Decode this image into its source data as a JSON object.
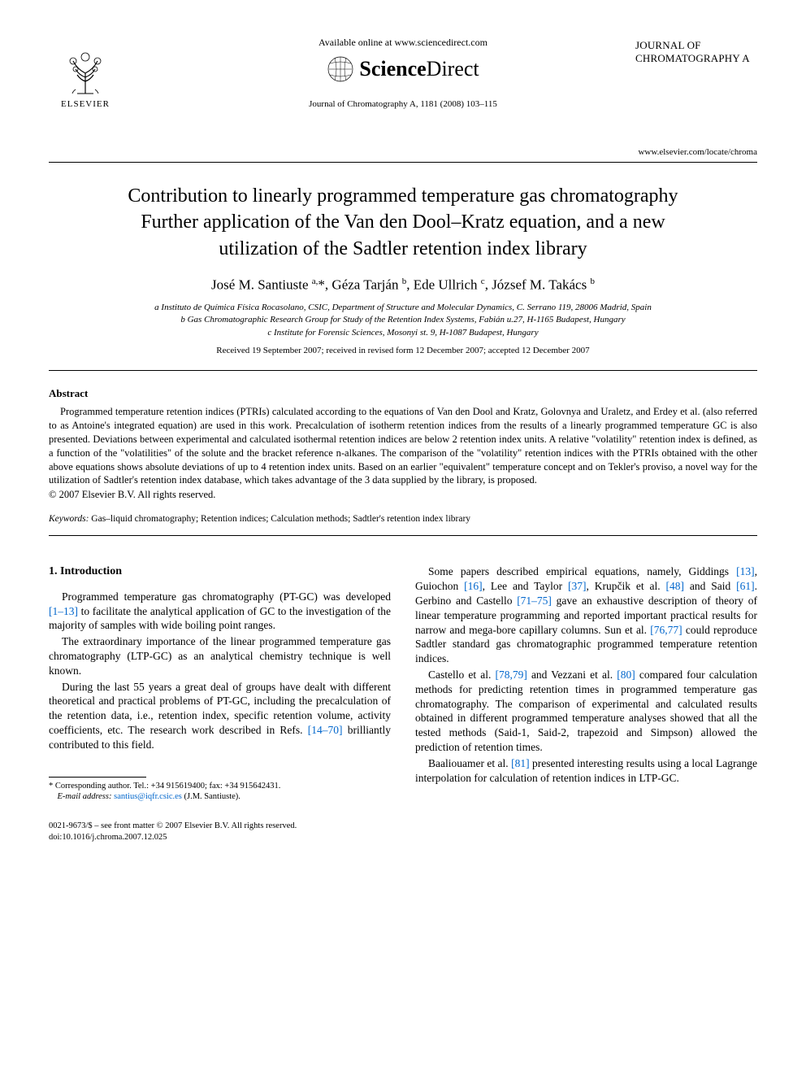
{
  "header": {
    "elsevier_label": "ELSEVIER",
    "available_text": "Available online at www.sciencedirect.com",
    "sciencedirect_prefix": "Science",
    "sciencedirect_suffix": "Direct",
    "journal_citation": "Journal of Chromatography A, 1181 (2008) 103–115",
    "journal_name_line1": "JOURNAL OF",
    "journal_name_line2": "CHROMATOGRAPHY A",
    "journal_url": "www.elsevier.com/locate/chroma"
  },
  "article": {
    "title_line1": "Contribution to linearly programmed temperature gas chromatography",
    "title_line2": "Further application of the Van den Dool–Kratz equation, and a new",
    "title_line3": "utilization of the Sadtler retention index library",
    "authors_html": "José M. Santiuste <sup>a,</sup>*, Géza Tarján <sup>b</sup>, Ede Ullrich <sup>c</sup>, József M. Takács <sup>b</sup>",
    "affiliations": [
      "a Instituto de Química Física Rocasolano, CSIC, Department of Structure and Molecular Dynamics, C. Serrano 119, 28006 Madrid, Spain",
      "b Gas Chromatographic Research Group for Study of the Retention Index Systems, Fabián u.27, H-1165 Budapest, Hungary",
      "c Institute for Forensic Sciences, Mosonyi st. 9, H-1087 Budapest, Hungary"
    ],
    "dates": "Received 19 September 2007; received in revised form 12 December 2007; accepted 12 December 2007"
  },
  "abstract": {
    "label": "Abstract",
    "body": "Programmed temperature retention indices (PTRIs) calculated according to the equations of Van den Dool and Kratz, Golovnya and Uraletz, and Erdey et al. (also referred to as Antoine's integrated equation) are used in this work. Precalculation of isotherm retention indices from the results of a linearly programmed temperature GC is also presented. Deviations between experimental and calculated isothermal retention indices are below 2 retention index units. A relative \"volatility\" retention index is defined, as a function of the \"volatilities\" of the solute and the bracket reference n-alkanes. The comparison of the \"volatility\" retention indices with the PTRIs obtained with the other above equations shows absolute deviations of up to 4 retention index units. Based on an earlier \"equivalent\" temperature concept and on Tekler's proviso, a novel way for the utilization of Sadtler's retention index database, which takes advantage of the 3 data supplied by the library, is proposed.",
    "copyright": "© 2007 Elsevier B.V. All rights reserved."
  },
  "keywords": {
    "label": "Keywords:",
    "text": "Gas–liquid chromatography; Retention indices; Calculation methods; Sadtler's retention index library"
  },
  "body": {
    "section_heading": "1.  Introduction",
    "left_paragraphs": [
      "Programmed temperature gas chromatography (PT-GC) was developed <span class=\"ref-link\">[1–13]</span> to facilitate the analytical application of GC to the investigation of the majority of samples with wide boiling point ranges.",
      "The extraordinary importance of the linear programmed temperature gas chromatography (LTP-GC) as an analytical chemistry technique is well known.",
      "During the last 55 years a great deal of groups have dealt with different theoretical and practical problems of PT-GC, including the precalculation of the retention data, i.e., retention index, specific retention volume, activity coefficients, etc. The research work described in Refs. <span class=\"ref-link\">[14–70]</span> brilliantly contributed to this field."
    ],
    "right_paragraphs": [
      "Some papers described empirical equations, namely, Giddings <span class=\"ref-link\">[13]</span>, Guiochon <span class=\"ref-link\">[16]</span>, Lee and Taylor <span class=\"ref-link\">[37]</span>, Krupčik et al. <span class=\"ref-link\">[48]</span> and Said <span class=\"ref-link\">[61]</span>. Gerbino and Castello <span class=\"ref-link\">[71–75]</span> gave an exhaustive description of theory of linear temperature programming and reported important practical results for narrow and mega-bore capillary columns. Sun et al. <span class=\"ref-link\">[76,77]</span> could reproduce Sadtler standard gas chromatographic programmed temperature retention indices.",
      "Castello et al. <span class=\"ref-link\">[78,79]</span> and Vezzani et al. <span class=\"ref-link\">[80]</span> compared four calculation methods for predicting retention times in programmed temperature gas chromatography. The comparison of experimental and calculated results obtained in different programmed temperature analyses showed that all the tested methods (Said-1, Said-2, trapezoid and Simpson) allowed the prediction of retention times.",
      "Baaliouamer et al. <span class=\"ref-link\">[81]</span> presented interesting results using a local Lagrange interpolation for calculation of retention indices in LTP-GC."
    ]
  },
  "footnote": {
    "corr_line": "* Corresponding author. Tel.: +34 915619400; fax: +34 915642431.",
    "email_label": "E-mail address:",
    "email": "santius@iqfr.csic.es",
    "email_name": "(J.M. Santiuste)."
  },
  "footer": {
    "line1": "0021-9673/$ – see front matter © 2007 Elsevier B.V. All rights reserved.",
    "doi": "doi:10.1016/j.chroma.2007.12.025"
  },
  "colors": {
    "text": "#000000",
    "link": "#0066cc",
    "background": "#ffffff",
    "rule": "#000000"
  },
  "fonts": {
    "body_family": "Times New Roman, serif",
    "title_size_pt": 18,
    "author_size_pt": 13,
    "body_size_pt": 10,
    "abstract_size_pt": 9.5,
    "footnote_size_pt": 8
  }
}
